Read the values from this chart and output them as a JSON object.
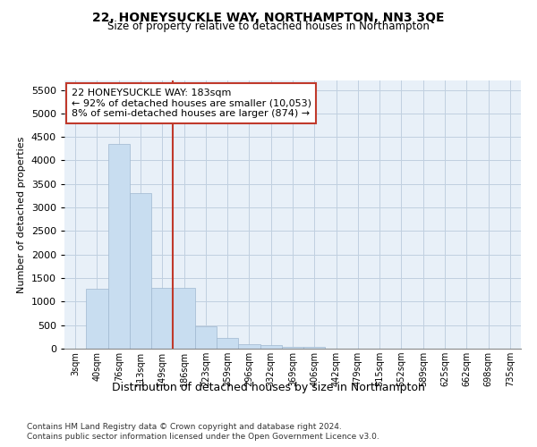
{
  "title": "22, HONEYSUCKLE WAY, NORTHAMPTON, NN3 3QE",
  "subtitle": "Size of property relative to detached houses in Northampton",
  "xlabel": "Distribution of detached houses by size in Northampton",
  "ylabel": "Number of detached properties",
  "bin_labels": [
    "3sqm",
    "40sqm",
    "76sqm",
    "113sqm",
    "149sqm",
    "186sqm",
    "223sqm",
    "259sqm",
    "296sqm",
    "332sqm",
    "369sqm",
    "406sqm",
    "442sqm",
    "479sqm",
    "515sqm",
    "552sqm",
    "589sqm",
    "625sqm",
    "662sqm",
    "698sqm",
    "735sqm"
  ],
  "bar_values": [
    0,
    1270,
    4350,
    3300,
    1300,
    1300,
    475,
    225,
    100,
    70,
    45,
    30,
    5,
    0,
    0,
    0,
    0,
    0,
    0,
    0,
    0
  ],
  "bar_color": "#c8ddf0",
  "bar_edgecolor": "#a0b8d0",
  "grid_color": "#c0d0e0",
  "background_color": "#e8f0f8",
  "vline_color": "#c0392b",
  "ylim": [
    0,
    5700
  ],
  "yticks": [
    0,
    500,
    1000,
    1500,
    2000,
    2500,
    3000,
    3500,
    4000,
    4500,
    5000,
    5500
  ],
  "annotation_text": "22 HONEYSUCKLE WAY: 183sqm\n← 92% of detached houses are smaller (10,053)\n8% of semi-detached houses are larger (874) →",
  "annotation_box_facecolor": "#ffffff",
  "annotation_box_edgecolor": "#c0392b",
  "footer1": "Contains HM Land Registry data © Crown copyright and database right 2024.",
  "footer2": "Contains public sector information licensed under the Open Government Licence v3.0."
}
